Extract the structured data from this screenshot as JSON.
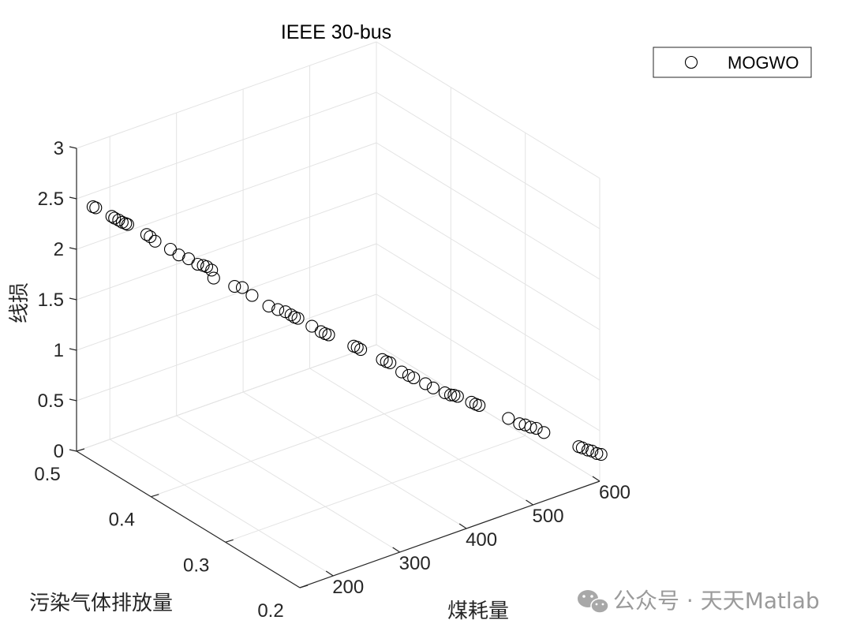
{
  "chart_data": {
    "type": "scatter",
    "projection": "3d",
    "title": "IEEE 30-bus",
    "xlabel": "煤耗量",
    "ylabel": "污染气体排放量",
    "zlabel": "线损",
    "xlim": [
      150,
      600
    ],
    "ylim": [
      0.2,
      0.5
    ],
    "zlim": [
      0,
      3
    ],
    "x_ticks": [
      "200",
      "300",
      "400",
      "500",
      "600"
    ],
    "y_ticks": [
      "0.2",
      "0.3",
      "0.4",
      "0.5"
    ],
    "z_ticks": [
      "0",
      "0.5",
      "1",
      "1.5",
      "2",
      "2.5",
      "3"
    ],
    "grid": true,
    "legend": {
      "position": "top-right",
      "entries": [
        "MOGWO"
      ]
    },
    "colors": {
      "marker": "#000000",
      "grid": "#e3e3e3",
      "axis": "#262626"
    },
    "marker": "open-circle",
    "series": [
      {
        "name": "MOGWO",
        "points": [
          [
            158,
            0.485,
            2.47
          ],
          [
            162,
            0.485,
            2.45
          ],
          [
            175,
            0.475,
            2.38
          ],
          [
            178,
            0.474,
            2.36
          ],
          [
            182,
            0.472,
            2.34
          ],
          [
            185,
            0.47,
            2.32
          ],
          [
            188,
            0.468,
            2.31
          ],
          [
            190,
            0.467,
            2.3
          ],
          [
            205,
            0.455,
            2.22
          ],
          [
            208,
            0.453,
            2.2
          ],
          [
            212,
            0.45,
            2.16
          ],
          [
            225,
            0.441,
            2.09
          ],
          [
            232,
            0.436,
            2.04
          ],
          [
            240,
            0.43,
            2.01
          ],
          [
            248,
            0.425,
            1.96
          ],
          [
            253,
            0.422,
            1.95
          ],
          [
            256,
            0.42,
            1.94
          ],
          [
            260,
            0.417,
            1.91
          ],
          [
            262,
            0.416,
            1.83
          ],
          [
            280,
            0.404,
            1.76
          ],
          [
            287,
            0.4,
            1.75
          ],
          [
            295,
            0.394,
            1.68
          ],
          [
            310,
            0.385,
            1.58
          ],
          [
            318,
            0.38,
            1.55
          ],
          [
            325,
            0.376,
            1.53
          ],
          [
            330,
            0.373,
            1.5
          ],
          [
            333,
            0.371,
            1.48
          ],
          [
            336,
            0.369,
            1.47
          ],
          [
            348,
            0.361,
            1.4
          ],
          [
            356,
            0.356,
            1.35
          ],
          [
            360,
            0.354,
            1.33
          ],
          [
            363,
            0.352,
            1.32
          ],
          [
            385,
            0.338,
            1.22
          ],
          [
            388,
            0.336,
            1.21
          ],
          [
            391,
            0.334,
            1.19
          ],
          [
            410,
            0.322,
            1.1
          ],
          [
            414,
            0.32,
            1.08
          ],
          [
            417,
            0.318,
            1.07
          ],
          [
            428,
            0.312,
            0.98
          ],
          [
            434,
            0.308,
            0.95
          ],
          [
            438,
            0.305,
            0.93
          ],
          [
            448,
            0.298,
            0.88
          ],
          [
            455,
            0.294,
            0.84
          ],
          [
            465,
            0.287,
            0.8
          ],
          [
            470,
            0.284,
            0.78
          ],
          [
            473,
            0.282,
            0.78
          ],
          [
            476,
            0.28,
            0.77
          ],
          [
            488,
            0.272,
            0.72
          ],
          [
            492,
            0.27,
            0.7
          ],
          [
            495,
            0.268,
            0.69
          ],
          [
            520,
            0.251,
            0.58
          ],
          [
            530,
            0.245,
            0.53
          ],
          [
            535,
            0.242,
            0.52
          ],
          [
            540,
            0.239,
            0.5
          ],
          [
            545,
            0.236,
            0.49
          ],
          [
            552,
            0.232,
            0.45
          ],
          [
            582,
            0.212,
            0.33
          ],
          [
            585,
            0.21,
            0.32
          ],
          [
            590,
            0.207,
            0.3
          ],
          [
            594,
            0.205,
            0.29
          ],
          [
            598,
            0.202,
            0.27
          ],
          [
            602,
            0.2,
            0.26
          ]
        ]
      }
    ]
  },
  "watermark": {
    "text": "公众号 · 天天Matlab",
    "icon": "wechat-icon"
  }
}
